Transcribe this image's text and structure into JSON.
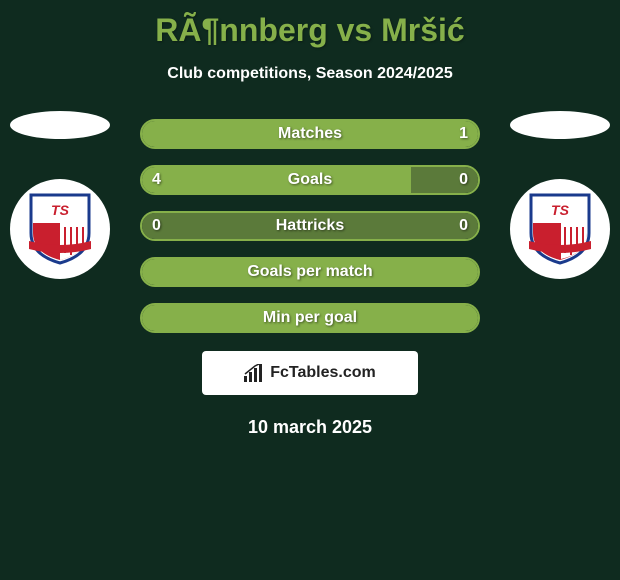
{
  "background_color": "#0f2b1f",
  "title": {
    "text": "RÃ¶nnberg vs Mršić",
    "color": "#86b04a",
    "fontsize": 32
  },
  "subtitle": {
    "text": "Club competitions, Season 2024/2025",
    "color": "#ffffff",
    "fontsize": 16
  },
  "badge": {
    "shield_outline": "#1a3a8c",
    "shield_top": "#ffffff",
    "shield_bottom_left": "#c91f2e",
    "shield_bottom_right": "#ffffff",
    "banner_color": "#c91f2e",
    "text_on_shield": "TS"
  },
  "stats": {
    "accent_color": "#86b04a",
    "secondary_color": "#5b7a3a",
    "border_color": "#86b04a",
    "rows": [
      {
        "label": "Matches",
        "left": "",
        "right": "1",
        "left_pct": 50,
        "right_pct": 50,
        "left_fill": "#86b04a",
        "right_fill": "#86b04a",
        "show_left": false,
        "show_right": true
      },
      {
        "label": "Goals",
        "left": "4",
        "right": "0",
        "left_pct": 80,
        "right_pct": 20,
        "left_fill": "#86b04a",
        "right_fill": "#5b7a3a",
        "show_left": true,
        "show_right": true
      },
      {
        "label": "Hattricks",
        "left": "0",
        "right": "0",
        "left_pct": 50,
        "right_pct": 50,
        "left_fill": "#5b7a3a",
        "right_fill": "#5b7a3a",
        "show_left": true,
        "show_right": true
      },
      {
        "label": "Goals per match",
        "left": "",
        "right": "",
        "left_pct": 100,
        "right_pct": 0,
        "left_fill": "#86b04a",
        "right_fill": "#86b04a",
        "show_left": false,
        "show_right": false
      },
      {
        "label": "Min per goal",
        "left": "",
        "right": "",
        "left_pct": 100,
        "right_pct": 0,
        "left_fill": "#86b04a",
        "right_fill": "#86b04a",
        "show_left": false,
        "show_right": false
      }
    ]
  },
  "footer": {
    "brand": "FcTables.com",
    "date": "10 march 2025"
  }
}
